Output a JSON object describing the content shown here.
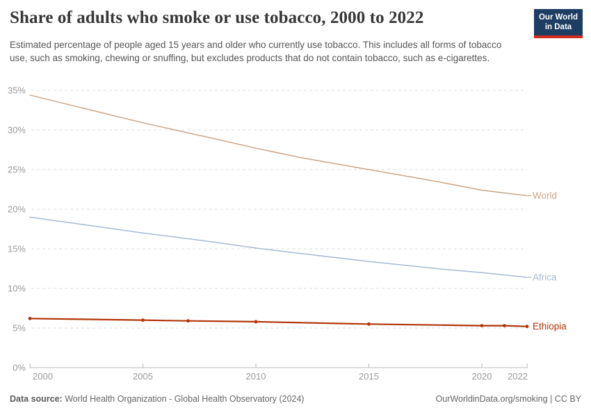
{
  "header": {
    "title": "Share of adults who smoke or use tobacco, 2000 to 2022",
    "subtitle": "Estimated percentage of people aged 15 years and older who currently use tobacco. This includes all forms of tobacco use, such as smoking, chewing or snuffing, but excludes products that do not contain tobacco, such as e-cigarettes.",
    "logo": {
      "line1": "Our World",
      "line2": "in Data"
    }
  },
  "chart_data": {
    "type": "line",
    "title": "Share of adults who smoke or use tobacco, 2000 to 2022",
    "xlabel": "",
    "ylabel": "",
    "xlim": [
      2000,
      2022
    ],
    "ylim": [
      0,
      35
    ],
    "x_ticks": [
      2000,
      2005,
      2010,
      2015,
      2020,
      2022
    ],
    "y_ticks": [
      0,
      5,
      10,
      15,
      20,
      25,
      30,
      35
    ],
    "y_tick_suffix": "%",
    "grid": "horizontal-dashed",
    "legend_position": "end-of-line-labels",
    "series": [
      {
        "name": "World",
        "color": "#C9A587",
        "markers": false,
        "line_width": 1.5,
        "points": [
          [
            2000,
            34.4
          ],
          [
            2002,
            33.0
          ],
          [
            2005,
            30.9
          ],
          [
            2008,
            29.0
          ],
          [
            2010,
            27.7
          ],
          [
            2012,
            26.5
          ],
          [
            2015,
            25.0
          ],
          [
            2018,
            23.5
          ],
          [
            2020,
            22.4
          ],
          [
            2022,
            21.7
          ]
        ]
      },
      {
        "name": "Africa",
        "color": "#A6B9D2",
        "markers": false,
        "line_width": 1.5,
        "points": [
          [
            2000,
            19.0
          ],
          [
            2002,
            18.2
          ],
          [
            2005,
            17.0
          ],
          [
            2008,
            15.9
          ],
          [
            2010,
            15.1
          ],
          [
            2012,
            14.4
          ],
          [
            2015,
            13.4
          ],
          [
            2018,
            12.5
          ],
          [
            2020,
            12.0
          ],
          [
            2022,
            11.4
          ]
        ]
      },
      {
        "name": "Ethiopia",
        "color": "#B13507",
        "markers": true,
        "line_width": 2.2,
        "points": [
          [
            2000,
            6.2
          ],
          [
            2005,
            6.0
          ],
          [
            2007,
            5.9
          ],
          [
            2010,
            5.8
          ],
          [
            2015,
            5.5
          ],
          [
            2020,
            5.3
          ],
          [
            2021,
            5.3
          ],
          [
            2022,
            5.2
          ]
        ]
      }
    ]
  },
  "footer": {
    "source_label": "Data source:",
    "source_text": "World Health Organization - Global Health Observatory (2024)",
    "url": "OurWorldinData.org/smoking",
    "separator": " | ",
    "license": "CC BY"
  },
  "colors": {
    "title": "#363636",
    "subtitle": "#555555",
    "axis_label": "#999999",
    "gridline": "#dddddd",
    "axis_line": "#b8b8b8",
    "logo_bg": "#1d3d63",
    "logo_accent": "#d42b21"
  }
}
